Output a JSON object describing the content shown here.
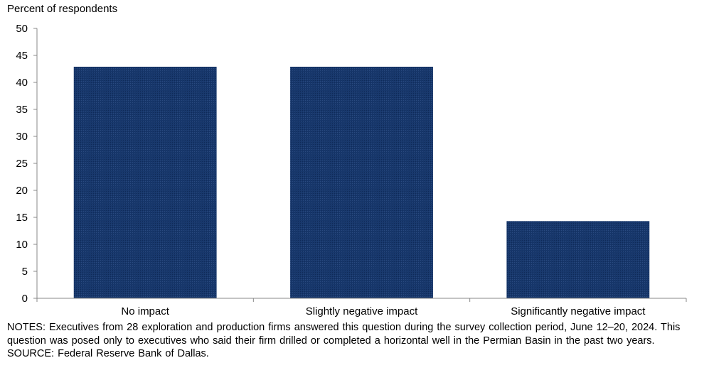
{
  "chart_data": {
    "type": "bar",
    "title": "",
    "ylabel": "Percent of respondents",
    "xlabel": "",
    "categories": [
      "No impact",
      "Slightly negative impact",
      "Significantly negative impact"
    ],
    "values": [
      42.9,
      42.9,
      14.3
    ],
    "ylim": [
      0,
      50
    ],
    "yticks": [
      0,
      5,
      10,
      15,
      20,
      25,
      30,
      35,
      40,
      45,
      50
    ],
    "bar_color": "#17376b",
    "grid": false,
    "legend": "none"
  },
  "footer": {
    "notes": "NOTES: Executives from 28 exploration and production firms answered this question during the survey collection period, June 12–20, 2024. This question was posed only to executives who said their firm drilled or completed a horizontal well in the Permian Basin in the past two years.",
    "source": "SOURCE: Federal Reserve Bank of Dallas."
  }
}
